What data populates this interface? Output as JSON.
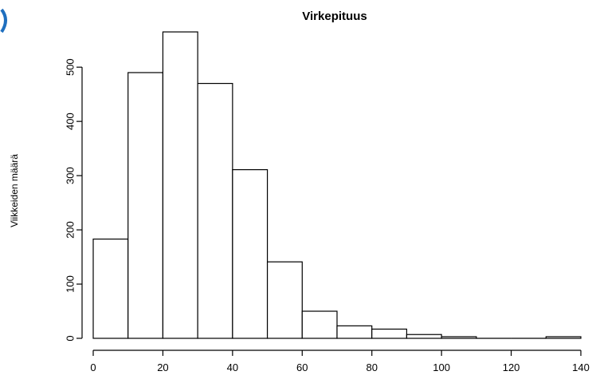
{
  "chart_data": {
    "type": "bar",
    "title": "Virkepituus",
    "xlabel": "",
    "ylabel": "Viikkeiden määrä",
    "bin_edges": [
      0,
      10,
      20,
      30,
      40,
      50,
      60,
      70,
      80,
      90,
      100,
      110,
      120,
      130,
      140
    ],
    "values": [
      183,
      490,
      565,
      470,
      311,
      141,
      50,
      23,
      17,
      7,
      3,
      0,
      0,
      3
    ],
    "xlim": [
      0,
      140
    ],
    "ylim": [
      0,
      565
    ],
    "x_ticks": [
      "0",
      "20",
      "40",
      "60",
      "80",
      "100",
      "120",
      "140"
    ],
    "y_ticks": [
      "0",
      "100",
      "200",
      "300",
      "400",
      "500"
    ],
    "grid": false,
    "legend": "none"
  }
}
